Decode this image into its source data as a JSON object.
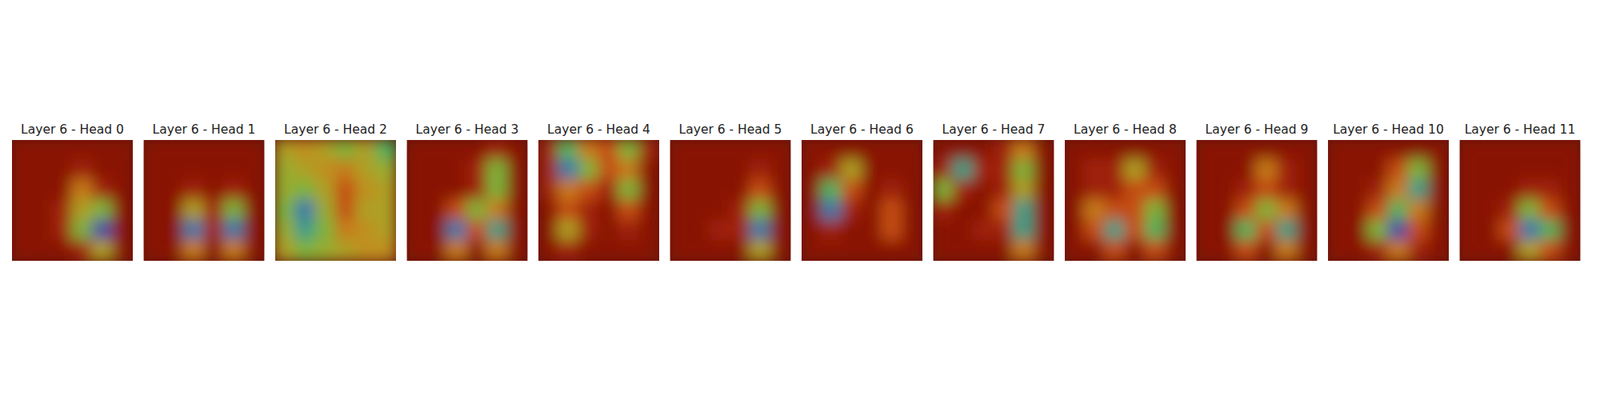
{
  "chart_data": [
    {
      "type": "heatmap",
      "title": "Layer 6 - Head 0",
      "tick_labels": false,
      "cells": [
        [
          0.05,
          0.05,
          0.05,
          0.05,
          0.05,
          0.05
        ],
        [
          0.05,
          0.05,
          0.05,
          0.1,
          0.05,
          0.05
        ],
        [
          0.05,
          0.05,
          0.05,
          0.3,
          0.1,
          0.05
        ],
        [
          0.05,
          0.05,
          0.1,
          0.4,
          0.5,
          0.05
        ],
        [
          0.05,
          0.05,
          0.1,
          0.5,
          0.9,
          0.05
        ],
        [
          0.05,
          0.05,
          0.05,
          0.1,
          0.4,
          0.05
        ]
      ]
    },
    {
      "type": "heatmap",
      "title": "Layer 6 - Head 1",
      "tick_labels": false,
      "cells": [
        [
          0.05,
          0.05,
          0.05,
          0.05,
          0.05,
          0.05
        ],
        [
          0.05,
          0.05,
          0.05,
          0.05,
          0.05,
          0.05
        ],
        [
          0.05,
          0.05,
          0.1,
          0.05,
          0.1,
          0.05
        ],
        [
          0.05,
          0.05,
          0.4,
          0.1,
          0.5,
          0.05
        ],
        [
          0.05,
          0.05,
          0.8,
          0.1,
          0.8,
          0.05
        ],
        [
          0.05,
          0.05,
          0.3,
          0.05,
          0.3,
          0.05
        ]
      ]
    },
    {
      "type": "heatmap",
      "title": "Layer 6 - Head 2",
      "tick_labels": false,
      "cells": [
        [
          0.4,
          0.35,
          0.4,
          0.5,
          0.4,
          0.6
        ],
        [
          0.45,
          0.4,
          0.35,
          0.3,
          0.4,
          0.45
        ],
        [
          0.45,
          0.5,
          0.4,
          0.2,
          0.35,
          0.4
        ],
        [
          0.5,
          0.8,
          0.45,
          0.2,
          0.4,
          0.4
        ],
        [
          0.45,
          0.7,
          0.5,
          0.3,
          0.35,
          0.4
        ],
        [
          0.4,
          0.5,
          0.45,
          0.4,
          0.35,
          0.35
        ]
      ]
    },
    {
      "type": "heatmap",
      "title": "Layer 6 - Head 3",
      "tick_labels": false,
      "cells": [
        [
          0.05,
          0.05,
          0.05,
          0.05,
          0.1,
          0.05
        ],
        [
          0.05,
          0.05,
          0.05,
          0.1,
          0.5,
          0.05
        ],
        [
          0.05,
          0.05,
          0.05,
          0.1,
          0.5,
          0.05
        ],
        [
          0.05,
          0.05,
          0.2,
          0.5,
          0.3,
          0.05
        ],
        [
          0.05,
          0.05,
          0.8,
          0.2,
          0.7,
          0.05
        ],
        [
          0.05,
          0.05,
          0.3,
          0.05,
          0.3,
          0.05
        ]
      ]
    },
    {
      "type": "heatmap",
      "title": "Layer 6 - Head 4",
      "tick_labels": false,
      "cells": [
        [
          0.1,
          0.6,
          0.3,
          0.2,
          0.5,
          0.1
        ],
        [
          0.1,
          0.8,
          0.5,
          0.2,
          0.3,
          0.05
        ],
        [
          0.1,
          0.3,
          0.2,
          0.1,
          0.5,
          0.05
        ],
        [
          0.05,
          0.2,
          0.1,
          0.05,
          0.2,
          0.05
        ],
        [
          0.05,
          0.4,
          0.1,
          0.05,
          0.1,
          0.05
        ],
        [
          0.05,
          0.1,
          0.05,
          0.05,
          0.05,
          0.05
        ]
      ]
    },
    {
      "type": "heatmap",
      "title": "Layer 6 - Head 5",
      "tick_labels": false,
      "cells": [
        [
          0.05,
          0.05,
          0.05,
          0.05,
          0.05,
          0.05
        ],
        [
          0.05,
          0.05,
          0.05,
          0.05,
          0.1,
          0.05
        ],
        [
          0.05,
          0.05,
          0.05,
          0.05,
          0.2,
          0.05
        ],
        [
          0.05,
          0.05,
          0.05,
          0.1,
          0.5,
          0.05
        ],
        [
          0.05,
          0.05,
          0.1,
          0.1,
          0.8,
          0.05
        ],
        [
          0.05,
          0.05,
          0.05,
          0.05,
          0.4,
          0.05
        ]
      ]
    },
    {
      "type": "heatmap",
      "title": "Layer 6 - Head 6",
      "tick_labels": false,
      "cells": [
        [
          0.05,
          0.05,
          0.05,
          0.05,
          0.05,
          0.05
        ],
        [
          0.05,
          0.1,
          0.4,
          0.05,
          0.05,
          0.05
        ],
        [
          0.05,
          0.6,
          0.2,
          0.05,
          0.1,
          0.05
        ],
        [
          0.05,
          0.8,
          0.1,
          0.05,
          0.2,
          0.05
        ],
        [
          0.05,
          0.1,
          0.05,
          0.05,
          0.2,
          0.05
        ],
        [
          0.05,
          0.05,
          0.05,
          0.05,
          0.05,
          0.05
        ]
      ]
    },
    {
      "type": "heatmap",
      "title": "Layer 6 - Head 7",
      "tick_labels": false,
      "cells": [
        [
          0.05,
          0.05,
          0.05,
          0.1,
          0.3,
          0.05
        ],
        [
          0.1,
          0.7,
          0.1,
          0.1,
          0.5,
          0.05
        ],
        [
          0.5,
          0.1,
          0.05,
          0.1,
          0.4,
          0.05
        ],
        [
          0.1,
          0.05,
          0.05,
          0.2,
          0.7,
          0.05
        ],
        [
          0.05,
          0.05,
          0.1,
          0.1,
          0.7,
          0.05
        ],
        [
          0.05,
          0.05,
          0.05,
          0.05,
          0.3,
          0.05
        ]
      ]
    },
    {
      "type": "heatmap",
      "title": "Layer 6 - Head 8",
      "tick_labels": false,
      "cells": [
        [
          0.05,
          0.05,
          0.05,
          0.05,
          0.05,
          0.05
        ],
        [
          0.05,
          0.1,
          0.1,
          0.4,
          0.1,
          0.05
        ],
        [
          0.05,
          0.1,
          0.1,
          0.2,
          0.2,
          0.05
        ],
        [
          0.05,
          0.3,
          0.2,
          0.2,
          0.5,
          0.05
        ],
        [
          0.05,
          0.2,
          0.7,
          0.2,
          0.6,
          0.05
        ],
        [
          0.05,
          0.05,
          0.2,
          0.05,
          0.2,
          0.05
        ]
      ]
    },
    {
      "type": "heatmap",
      "title": "Layer 6 - Head 9",
      "tick_labels": false,
      "cells": [
        [
          0.05,
          0.05,
          0.05,
          0.05,
          0.05,
          0.05
        ],
        [
          0.05,
          0.05,
          0.05,
          0.3,
          0.1,
          0.05
        ],
        [
          0.05,
          0.05,
          0.1,
          0.2,
          0.1,
          0.05
        ],
        [
          0.05,
          0.05,
          0.2,
          0.5,
          0.3,
          0.05
        ],
        [
          0.05,
          0.05,
          0.6,
          0.2,
          0.7,
          0.05
        ],
        [
          0.05,
          0.05,
          0.2,
          0.05,
          0.3,
          0.05
        ]
      ]
    },
    {
      "type": "heatmap",
      "title": "Layer 6 - Head 10",
      "tick_labels": false,
      "cells": [
        [
          0.05,
          0.05,
          0.05,
          0.05,
          0.05,
          0.05
        ],
        [
          0.05,
          0.05,
          0.05,
          0.2,
          0.5,
          0.05
        ],
        [
          0.05,
          0.05,
          0.1,
          0.3,
          0.7,
          0.05
        ],
        [
          0.05,
          0.05,
          0.2,
          0.6,
          0.3,
          0.05
        ],
        [
          0.05,
          0.05,
          0.5,
          0.9,
          0.2,
          0.05
        ],
        [
          0.05,
          0.05,
          0.1,
          0.3,
          0.1,
          0.05
        ]
      ]
    },
    {
      "type": "heatmap",
      "title": "Layer 6 - Head 11",
      "tick_labels": false,
      "cells": [
        [
          0.05,
          0.05,
          0.05,
          0.05,
          0.05,
          0.05
        ],
        [
          0.05,
          0.05,
          0.05,
          0.05,
          0.05,
          0.05
        ],
        [
          0.05,
          0.05,
          0.05,
          0.1,
          0.1,
          0.05
        ],
        [
          0.05,
          0.05,
          0.1,
          0.5,
          0.2,
          0.05
        ],
        [
          0.05,
          0.05,
          0.2,
          0.8,
          0.6,
          0.05
        ],
        [
          0.05,
          0.05,
          0.05,
          0.4,
          0.2,
          0.05
        ]
      ]
    }
  ]
}
